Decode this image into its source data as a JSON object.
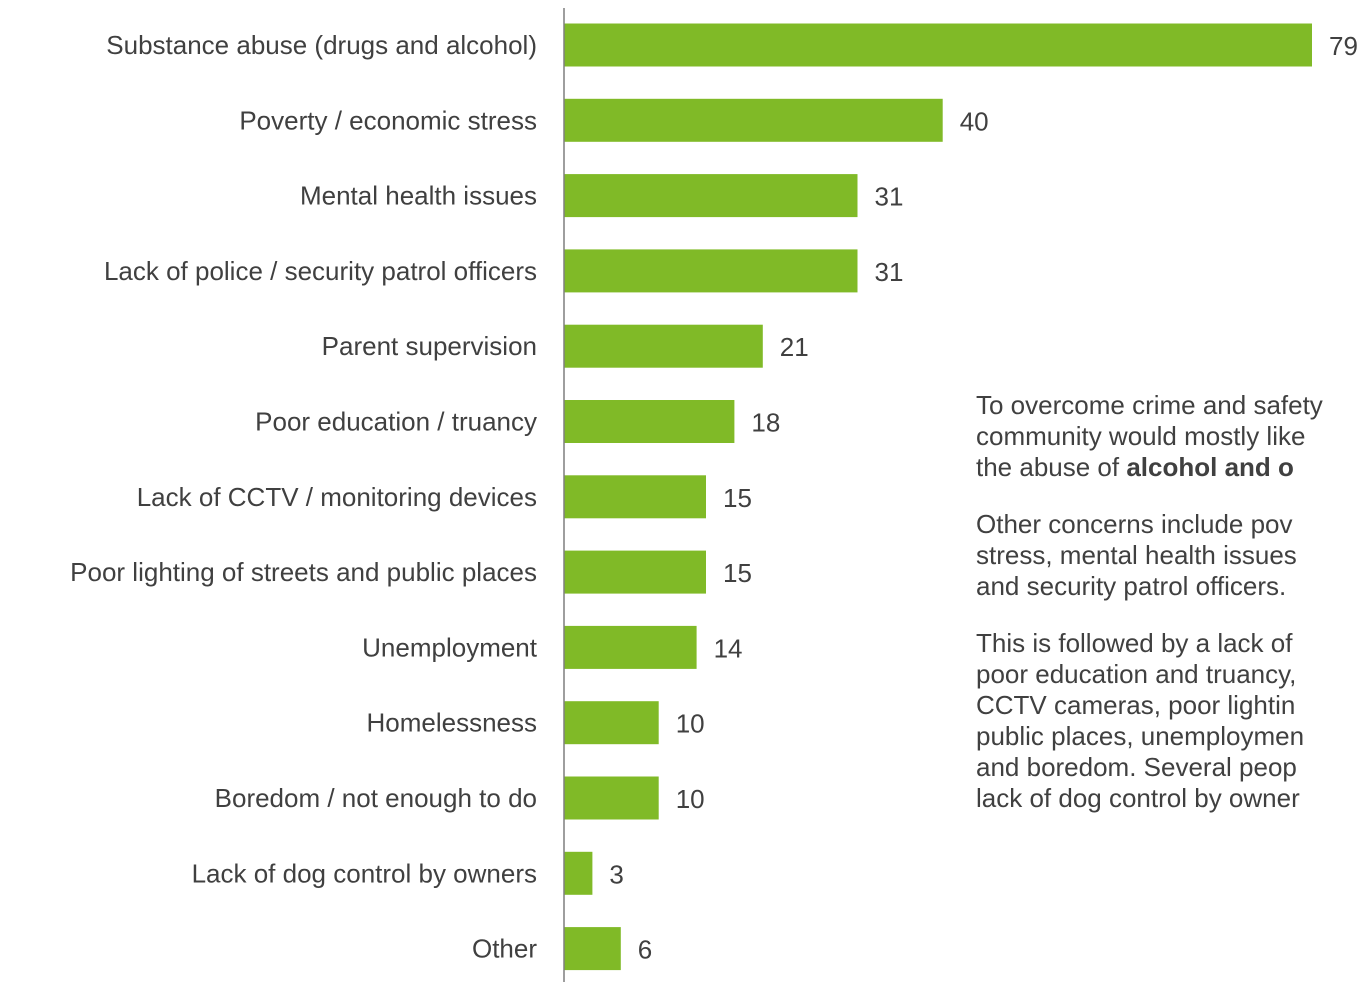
{
  "chart_data": {
    "type": "bar",
    "orientation": "horizontal",
    "categories": [
      "Substance abuse (drugs and alcohol)",
      "Poverty / economic stress",
      "Mental health issues",
      "Lack of police / security patrol officers",
      "Parent supervision",
      "Poor education / truancy",
      "Lack of CCTV / monitoring devices",
      "Poor lighting of streets and public places",
      "Unemployment",
      "Homelessness",
      "Boredom / not enough to do",
      "Lack of dog control by owners",
      "Other"
    ],
    "values": [
      79,
      40,
      31,
      31,
      21,
      18,
      15,
      15,
      14,
      10,
      10,
      3,
      6
    ],
    "value_labels": [
      "79",
      "40",
      "31",
      "31",
      "21",
      "18",
      "15",
      "15",
      "14",
      "10",
      "10",
      "3",
      "6"
    ],
    "xlim": [
      0,
      80
    ],
    "bar_color": "#80BA27",
    "axis_color": "#7f7f7f",
    "grid": false,
    "title": "",
    "xlabel": "",
    "ylabel": ""
  },
  "commentary": {
    "p1_lines": [
      "To overcome crime and safety",
      "community would mostly like",
      "the abuse of "
    ],
    "p1_bold": "alcohol and o",
    "p2_lines": [
      "Other concerns include pov",
      "stress, mental health issues",
      "and security patrol officers."
    ],
    "p3_lines": [
      "This is followed by a lack of",
      "poor education and truancy,",
      "CCTV cameras, poor lightin",
      "public places, unemploymen",
      "and boredom. Several peop",
      "lack of dog control by owner"
    ]
  }
}
